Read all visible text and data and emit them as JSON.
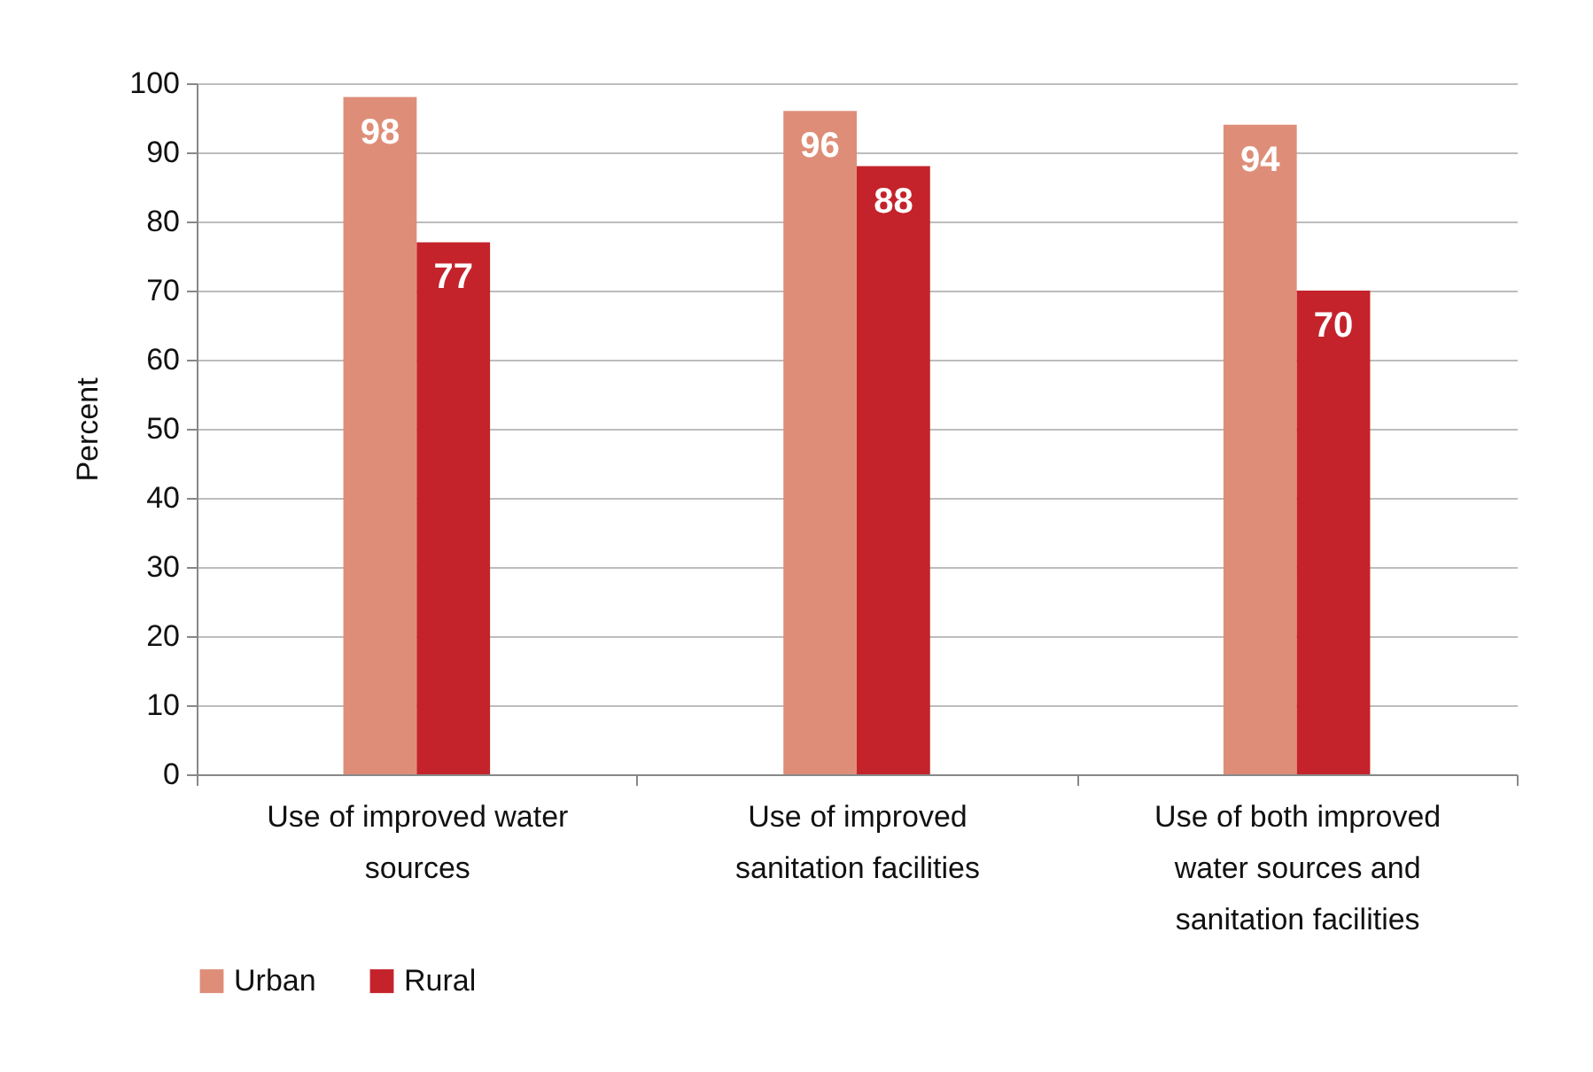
{
  "chart_data": {
    "type": "bar",
    "ylabel": "Percent",
    "categories": [
      "Use of improved water sources",
      "Use of improved sanitation facilities",
      "Use of both improved water sources and sanitation facilities"
    ],
    "series": [
      {
        "name": "Urban",
        "color": "#de8e78",
        "values": [
          98,
          96,
          94
        ]
      },
      {
        "name": "Rural",
        "color": "#c4232b",
        "values": [
          77,
          88,
          70
        ]
      }
    ],
    "ylim": [
      0,
      100
    ],
    "yticks": [
      0,
      10,
      20,
      30,
      40,
      50,
      60,
      70,
      80,
      90,
      100
    ],
    "grid": "y",
    "legend": "bottom",
    "data_labels": true
  }
}
